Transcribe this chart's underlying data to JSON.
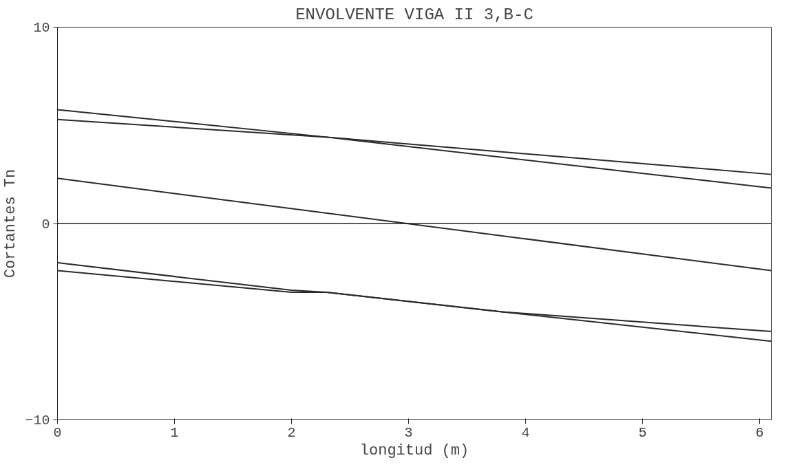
{
  "chart_data": {
    "type": "line",
    "title": "ENVOLVENTE VIGA II 3,B-C",
    "xlabel": "longitud (m)",
    "ylabel": "Cortantes Tn",
    "series": [
      {
        "color": "#2a2a2a",
        "x": [
          0,
          2.3,
          6.1
        ],
        "values": [
          5.8,
          4.4,
          2.5
        ]
      },
      {
        "color": "#2a2a2a",
        "x": [
          0,
          2.3,
          6.1
        ],
        "values": [
          5.3,
          4.4,
          1.8
        ]
      },
      {
        "color": "#2a2a2a",
        "x": [
          0,
          6.1
        ],
        "values": [
          2.3,
          -2.4
        ]
      },
      {
        "color": "#2a2a2a",
        "x": [
          0,
          2,
          2.3,
          3.8,
          6.1
        ],
        "values": [
          -2.0,
          -3.4,
          -3.5,
          -4.5,
          -5.5
        ]
      },
      {
        "color": "#2a2a2a",
        "x": [
          0,
          2,
          2.3,
          3.8,
          6.1
        ],
        "values": [
          -2.4,
          -3.5,
          -3.5,
          -4.5,
          -6.0
        ]
      }
    ],
    "xlim": [
      0,
      6.1
    ],
    "ylim": [
      -10,
      10
    ],
    "xticks": [
      0,
      1,
      2,
      3,
      4,
      5,
      6
    ],
    "yticks": [
      -10,
      0,
      10
    ],
    "ref_lines": [
      {
        "axis": "y",
        "value": 0
      }
    ],
    "grid": false,
    "line_style": "solid",
    "marker": "none"
  }
}
